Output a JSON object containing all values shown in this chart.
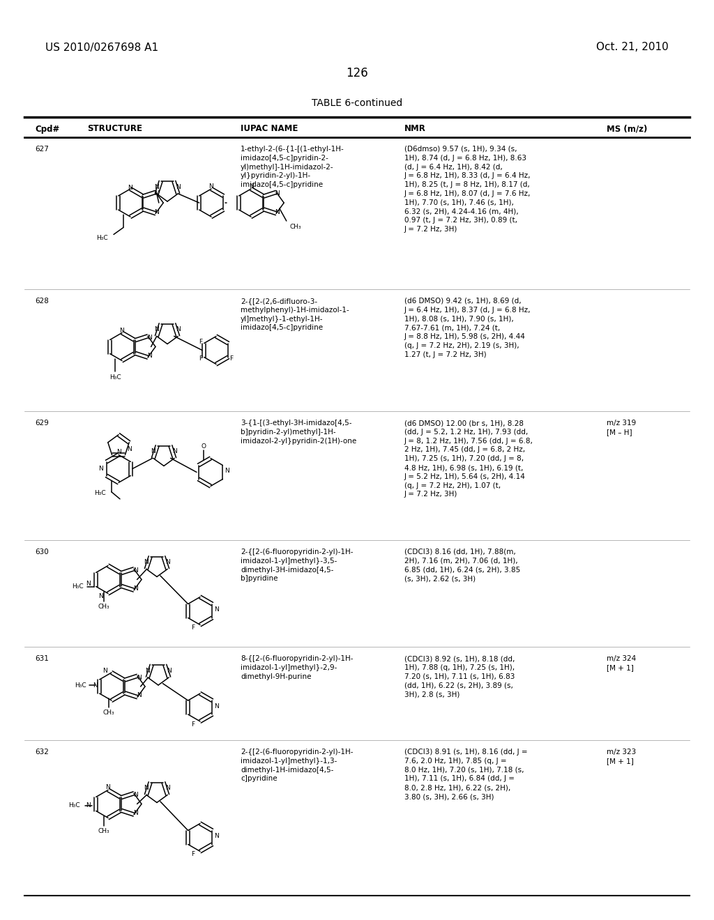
{
  "page_header_left": "US 2010/0267698 A1",
  "page_header_right": "Oct. 21, 2010",
  "page_number": "126",
  "table_title": "TABLE 6-continued",
  "col_headers": [
    "Cpd#",
    "STRUCTURE",
    "IUPAC NAME",
    "NMR",
    "MS (m/z)"
  ],
  "background_color": "#ffffff",
  "text_color": "#000000",
  "row_data": [
    {
      "cpd": "627",
      "iupac": "1-ethyl-2-(6-{1-[(1-ethyl-1H-\nimidazo[4,5-c]pyridin-2-\nyl)methyl]-1H-imidazol-2-\nyl}pyridin-2-yl)-1H-\nimidazo[4,5-c]pyridine",
      "nmr": "(D6dmso) 9.57 (s, 1H), 9.34 (s,\n1H), 8.74 (d, J = 6.8 Hz, 1H), 8.63\n(d, J = 6.4 Hz, 1H), 8.42 (d,\nJ = 6.8 Hz, 1H), 8.33 (d, J = 6.4 Hz,\n1H), 8.25 (t, J = 8 Hz, 1H), 8.17 (d,\nJ = 6.8 Hz, 1H), 8.07 (d, J = 7.6 Hz,\n1H), 7.70 (s, 1H), 7.46 (s, 1H),\n6.32 (s, 2H), 4.24-4.16 (m, 4H),\n0.97 (t, J = 7.2 Hz, 3H), 0.89 (t,\nJ = 7.2 Hz, 3H)",
      "ms": ""
    },
    {
      "cpd": "628",
      "iupac": "2-{[2-(2,6-difluoro-3-\nmethylphenyl)-1H-imidazol-1-\nyl]methyl}-1-ethyl-1H-\nimidazo[4,5-c]pyridine",
      "nmr": "(d6 DMSO) 9.42 (s, 1H), 8.69 (d,\nJ = 6.4 Hz, 1H), 8.37 (d, J = 6.8 Hz,\n1H), 8.08 (s, 1H), 7.90 (s, 1H),\n7.67-7.61 (m, 1H), 7.24 (t,\nJ = 8.8 Hz, 1H), 5.98 (s, 2H), 4.44\n(q, J = 7.2 Hz, 2H), 2.19 (s, 3H),\n1.27 (t, J = 7.2 Hz, 3H)",
      "ms": ""
    },
    {
      "cpd": "629",
      "iupac": "3-{1-[(3-ethyl-3H-imidazo[4,5-\nb]pyridin-2-yl)methyl]-1H-\nimidazol-2-yl}pyridin-2(1H)-one",
      "nmr": "(d6 DMSO) 12.00 (br s, 1H), 8.28\n(dd, J = 5.2, 1.2 Hz, 1H), 7.93 (dd,\nJ = 8, 1.2 Hz, 1H), 7.56 (dd, J = 6.8,\n2 Hz, 1H), 7.45 (dd, J = 6.8, 2 Hz,\n1H), 7.25 (s, 1H), 7.20 (dd, J = 8,\n4.8 Hz, 1H), 6.98 (s, 1H), 6.19 (t,\nJ = 5.2 Hz, 1H), 5.64 (s, 2H), 4.14\n(q, J = 7.2 Hz, 2H), 1.07 (t,\nJ = 7.2 Hz, 3H)",
      "ms": "m/z 319\n[M – H]"
    },
    {
      "cpd": "630",
      "iupac": "2-{[2-(6-fluoropyridin-2-yl)-1H-\nimidazol-1-yl]methyl}-3,5-\ndimethyl-3H-imidazo[4,5-\nb]pyridine",
      "nmr": "(CDCl3) 8.16 (dd, 1H), 7.88(m,\n2H), 7.16 (m, 2H), 7.06 (d, 1H),\n6.85 (dd, 1H), 6.24 (s, 2H), 3.85\n(s, 3H), 2.62 (s, 3H)",
      "ms": ""
    },
    {
      "cpd": "631",
      "iupac": "8-{[2-(6-fluoropyridin-2-yl)-1H-\nimidazol-1-yl]methyl}-2,9-\ndimethyl-9H-purine",
      "nmr": "(CDCl3) 8.92 (s, 1H), 8.18 (dd,\n1H), 7.88 (q, 1H), 7.25 (s, 1H),\n7.20 (s, 1H), 7.11 (s, 1H), 6.83\n(dd, 1H), 6.22 (s, 2H), 3.89 (s,\n3H), 2.8 (s, 3H)",
      "ms": "m/z 324\n[M + 1]"
    },
    {
      "cpd": "632",
      "iupac": "2-{[2-(6-fluoropyridin-2-yl)-1H-\nimidazol-1-yl]methyl}-1,3-\ndimethyl-1H-imidazo[4,5-\nc]pyridine",
      "nmr": "(CDCl3) 8.91 (s, 1H), 8.16 (dd, J =\n7.6, 2.0 Hz, 1H), 7.85 (q, J =\n8.0 Hz, 1H), 7.20 (s, 1H), 7.18 (s,\n1H), 7.11 (s, 1H), 6.84 (dd, J =\n8.0, 2.8 Hz, 1H), 6.22 (s, 2H),\n3.80 (s, 3H), 2.66 (s, 3H)",
      "ms": "m/z 323\n[M + 1]"
    }
  ]
}
